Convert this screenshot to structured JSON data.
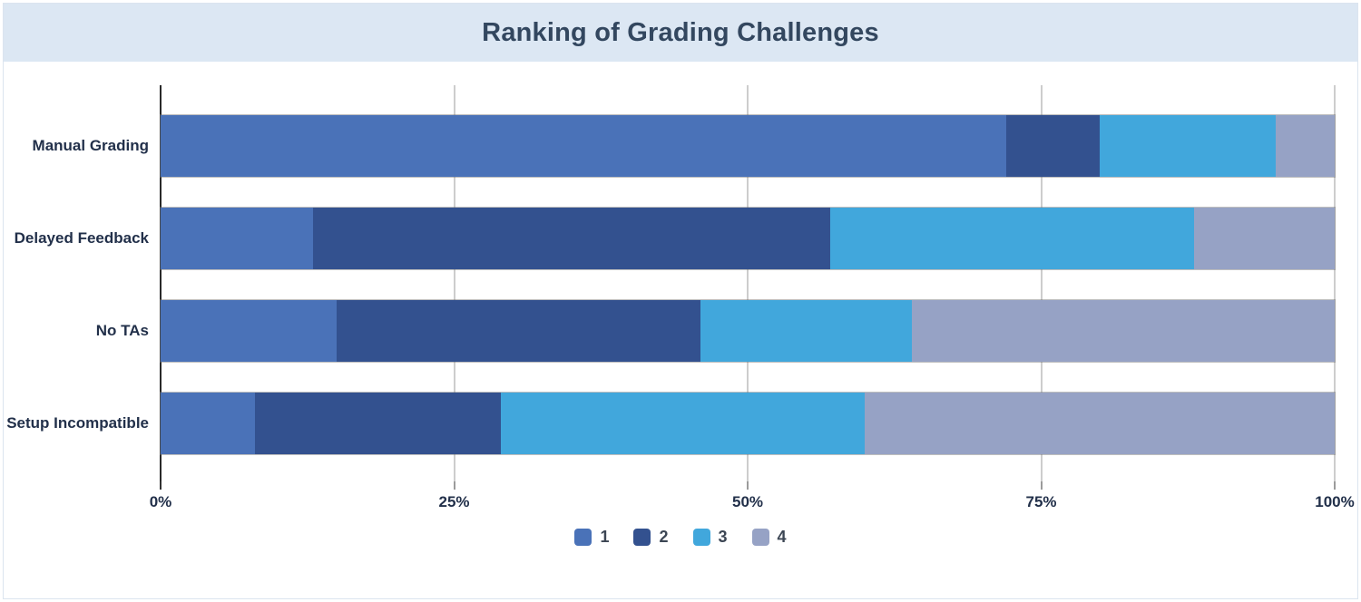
{
  "header": {
    "title": "Ranking of Grading Challenges"
  },
  "chart_data": {
    "type": "bar",
    "orientation": "horizontal",
    "stacked": true,
    "title": "Ranking of Grading Challenges",
    "categories": [
      "Manual Grading",
      "Delayed Feedback",
      "No TAs",
      "Setup Incompatible"
    ],
    "series": [
      {
        "name": "1",
        "color": "#4a72b8",
        "values": [
          72,
          13,
          15,
          8
        ]
      },
      {
        "name": "2",
        "color": "#33518f",
        "values": [
          8,
          44,
          31,
          21
        ]
      },
      {
        "name": "3",
        "color": "#41a7dc",
        "values": [
          15,
          31,
          18,
          31
        ]
      },
      {
        "name": "4",
        "color": "#96a2c5",
        "values": [
          5,
          12,
          36,
          40
        ]
      }
    ],
    "xlabel": "",
    "ylabel": "",
    "xlim": [
      0,
      100
    ],
    "xticks": [
      {
        "value": 0,
        "label": "0%"
      },
      {
        "value": 25,
        "label": "25%"
      },
      {
        "value": 50,
        "label": "50%"
      },
      {
        "value": 75,
        "label": "75%"
      },
      {
        "value": 100,
        "label": "100%"
      }
    ],
    "values_unit": "percent",
    "grid": "vertical",
    "legend_position": "bottom-center"
  },
  "colors": {
    "header_background": "#dce7f3",
    "title_text": "#33475f",
    "axis_line": "#2a2a2a",
    "gridline": "#cdcdcd",
    "label_text": "#22304a"
  }
}
